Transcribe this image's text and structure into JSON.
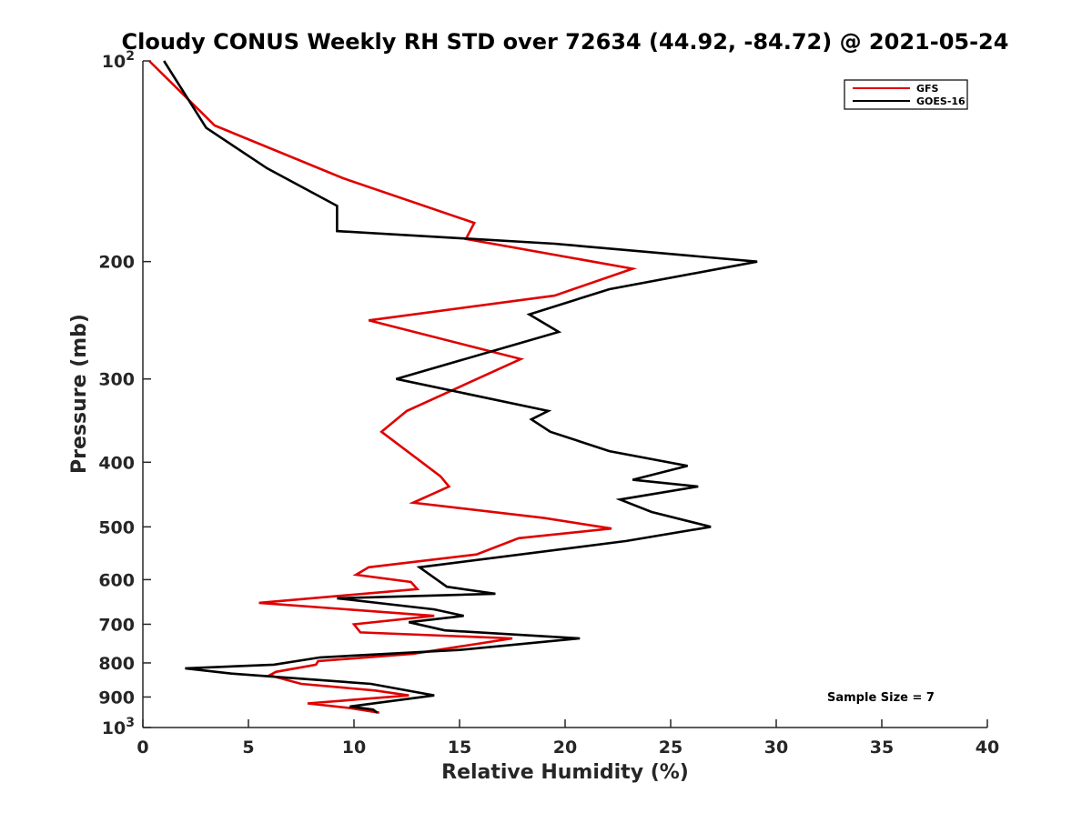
{
  "chart_data": {
    "type": "line",
    "title": "Cloudy CONUS Weekly RH STD over 72634 (44.92, -84.72) @ 2021-05-24",
    "xlabel": "Relative Humidity (%)",
    "ylabel": "Pressure (mb)",
    "xlim": [
      0,
      40
    ],
    "ylim": [
      100,
      1000
    ],
    "y_scale": "log",
    "y_reversed": true,
    "x_ticks": [
      "0",
      "5",
      "10",
      "15",
      "20",
      "25",
      "30",
      "35",
      "40"
    ],
    "y_ticks": [
      {
        "value": 100,
        "base": "10",
        "exp": "2"
      },
      {
        "value": 200,
        "label": "200"
      },
      {
        "value": 300,
        "label": "300"
      },
      {
        "value": 400,
        "label": "400"
      },
      {
        "value": 500,
        "label": "500"
      },
      {
        "value": 600,
        "label": "600"
      },
      {
        "value": 700,
        "label": "700"
      },
      {
        "value": 800,
        "label": "800"
      },
      {
        "value": 900,
        "label": "900"
      },
      {
        "value": 1000,
        "base": "10",
        "exp": "3"
      }
    ],
    "grid": false,
    "legend_position": "top-right",
    "annotation": "Sample Size = 7",
    "series": [
      {
        "name": "GFS",
        "color": "#e00000",
        "points": [
          [
            0.3,
            100
          ],
          [
            3.4,
            125
          ],
          [
            9.5,
            150
          ],
          [
            15.7,
            175
          ],
          [
            15.3,
            185
          ],
          [
            23.2,
            205
          ],
          [
            19.5,
            225
          ],
          [
            10.7,
            245
          ],
          [
            17.9,
            280
          ],
          [
            12.5,
            335
          ],
          [
            11.3,
            360
          ],
          [
            14.1,
            420
          ],
          [
            14.5,
            435
          ],
          [
            12.8,
            460
          ],
          [
            19.0,
            485
          ],
          [
            22.2,
            503
          ],
          [
            17.8,
            520
          ],
          [
            15.8,
            550
          ],
          [
            10.7,
            575
          ],
          [
            10.1,
            590
          ],
          [
            12.7,
            605
          ],
          [
            13.0,
            620
          ],
          [
            5.5,
            650
          ],
          [
            13.8,
            680
          ],
          [
            10.0,
            700
          ],
          [
            10.3,
            720
          ],
          [
            17.5,
            735
          ],
          [
            12.8,
            775
          ],
          [
            8.3,
            795
          ],
          [
            8.2,
            805
          ],
          [
            6.3,
            825
          ],
          [
            6.0,
            835
          ],
          [
            7.5,
            860
          ],
          [
            11.0,
            880
          ],
          [
            12.6,
            895
          ],
          [
            7.8,
            920
          ],
          [
            9.8,
            935
          ],
          [
            11.2,
            950
          ]
        ]
      },
      {
        "name": "GOES-16",
        "color": "#000000",
        "points": [
          [
            1.0,
            100
          ],
          [
            3.0,
            126
          ],
          [
            5.9,
            145
          ],
          [
            9.2,
            165
          ],
          [
            9.2,
            180
          ],
          [
            19.5,
            188
          ],
          [
            29.1,
            200
          ],
          [
            22.1,
            220
          ],
          [
            18.3,
            240
          ],
          [
            19.7,
            255
          ],
          [
            12.0,
            300
          ],
          [
            19.2,
            335
          ],
          [
            18.4,
            345
          ],
          [
            19.3,
            360
          ],
          [
            22.1,
            385
          ],
          [
            25.8,
            405
          ],
          [
            23.2,
            425
          ],
          [
            26.3,
            435
          ],
          [
            22.6,
            455
          ],
          [
            24.1,
            475
          ],
          [
            26.9,
            500
          ],
          [
            22.9,
            525
          ],
          [
            13.1,
            575
          ],
          [
            14.4,
            615
          ],
          [
            16.7,
            630
          ],
          [
            9.2,
            640
          ],
          [
            13.8,
            665
          ],
          [
            15.2,
            680
          ],
          [
            12.6,
            695
          ],
          [
            14.3,
            715
          ],
          [
            20.7,
            735
          ],
          [
            15.0,
            765
          ],
          [
            8.4,
            785
          ],
          [
            6.2,
            805
          ],
          [
            2.0,
            815
          ],
          [
            4.2,
            830
          ],
          [
            10.8,
            860
          ],
          [
            13.8,
            895
          ],
          [
            9.8,
            930
          ],
          [
            10.9,
            940
          ],
          [
            11.1,
            950
          ]
        ]
      }
    ]
  }
}
